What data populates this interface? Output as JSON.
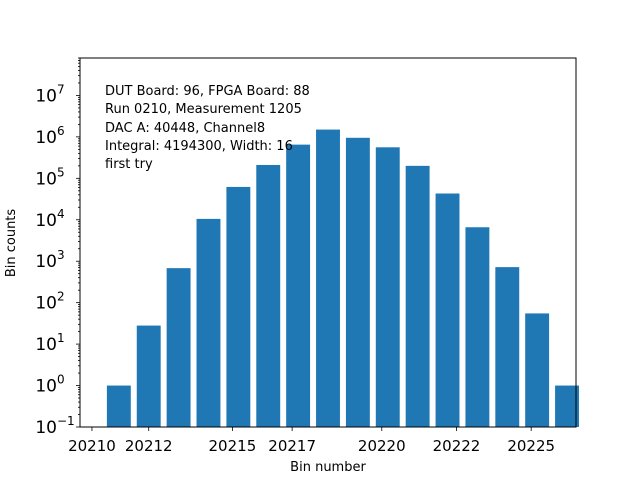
{
  "chart_data": {
    "type": "bar",
    "title": "",
    "xlabel": "Bin number",
    "ylabel": "Bin counts",
    "yscale": "log",
    "ylim": [
      0.1,
      80000000
    ],
    "xlim": [
      20209.7,
      20226.3
    ],
    "bar_color": "#1f77b4",
    "x": [
      20211,
      20212,
      20213,
      20214,
      20215,
      20216,
      20217,
      20218,
      20219,
      20220,
      20221,
      20222,
      20223,
      20224,
      20225,
      20226
    ],
    "values": [
      1,
      28,
      680,
      10500,
      62000,
      210000,
      650000,
      1500000,
      950000,
      560000,
      200000,
      43000,
      6600,
      720,
      55,
      1
    ],
    "x_ticks": [
      {
        "value": 20210.1,
        "label": "20210"
      },
      {
        "value": 20212.0,
        "label": "20212"
      },
      {
        "value": 20214.8,
        "label": "20215"
      },
      {
        "value": 20216.8,
        "label": "20217"
      },
      {
        "value": 20219.8,
        "label": "20220"
      },
      {
        "value": 20222.3,
        "label": "20222"
      },
      {
        "value": 20224.8,
        "label": "20225"
      }
    ],
    "y_ticks": [
      {
        "exp": -1,
        "base": "10",
        "sup": "−1"
      },
      {
        "exp": 0,
        "base": "10",
        "sup": "0"
      },
      {
        "exp": 1,
        "base": "10",
        "sup": "1"
      },
      {
        "exp": 2,
        "base": "10",
        "sup": "2"
      },
      {
        "exp": 3,
        "base": "10",
        "sup": "3"
      },
      {
        "exp": 4,
        "base": "10",
        "sup": "4"
      },
      {
        "exp": 5,
        "base": "10",
        "sup": "5"
      },
      {
        "exp": 6,
        "base": "10",
        "sup": "6"
      },
      {
        "exp": 7,
        "base": "10",
        "sup": "7"
      }
    ],
    "annotations": [
      "DUT Board: 96, FPGA Board: 88",
      "Run 0210, Measurement 1205",
      "DAC A: 40448, Channel8",
      "Integral: 4194300, Width: 16",
      "first try"
    ]
  }
}
